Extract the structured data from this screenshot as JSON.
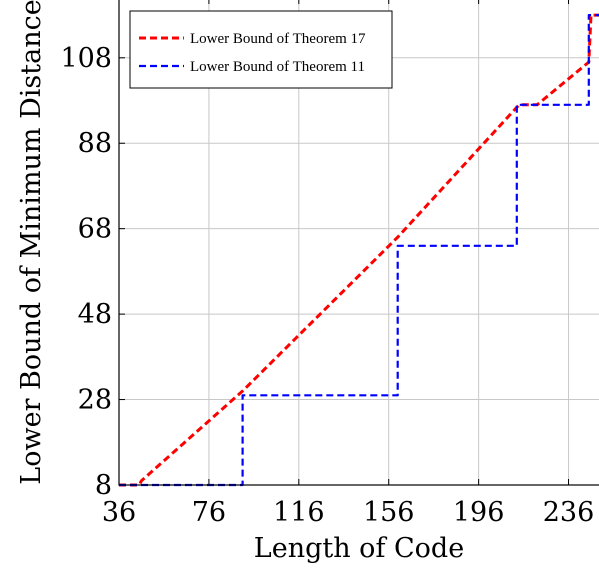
{
  "chart_data": {
    "type": "line",
    "title": "",
    "xlabel": "Length of Code",
    "ylabel": "Lower Bound of Minimum Distance",
    "xlim": [
      36,
      250
    ],
    "ylim": [
      8,
      122
    ],
    "xticks": [
      36,
      76,
      116,
      156,
      196,
      236
    ],
    "yticks": [
      8,
      28,
      48,
      68,
      88,
      108
    ],
    "grid": true,
    "legend_position": "top-left",
    "series": [
      {
        "name": "Lower Bound of Theorem 17",
        "color": "#ff0000",
        "style": "dashed",
        "points": [
          [
            36,
            8
          ],
          [
            45,
            8
          ],
          [
            46,
            9
          ],
          [
            91,
            30
          ],
          [
            160,
            66
          ],
          [
            214,
            97
          ],
          [
            222,
            97
          ],
          [
            245,
            107
          ],
          [
            246,
            118
          ],
          [
            250,
            118
          ]
        ]
      },
      {
        "name": "Lower Bound of Theorem 11",
        "color": "#0000ff",
        "style": "dashed",
        "points": [
          [
            36,
            8
          ],
          [
            91,
            8
          ],
          [
            91,
            29
          ],
          [
            150,
            29
          ],
          [
            150,
            29
          ],
          [
            159,
            29
          ],
          [
            159,
            29
          ],
          [
            159,
            29
          ],
          [
            160,
            29
          ],
          [
            160,
            64
          ],
          [
            213,
            64
          ],
          [
            213,
            97
          ],
          [
            245,
            97
          ],
          [
            245,
            118
          ],
          [
            250,
            118
          ]
        ]
      }
    ]
  }
}
